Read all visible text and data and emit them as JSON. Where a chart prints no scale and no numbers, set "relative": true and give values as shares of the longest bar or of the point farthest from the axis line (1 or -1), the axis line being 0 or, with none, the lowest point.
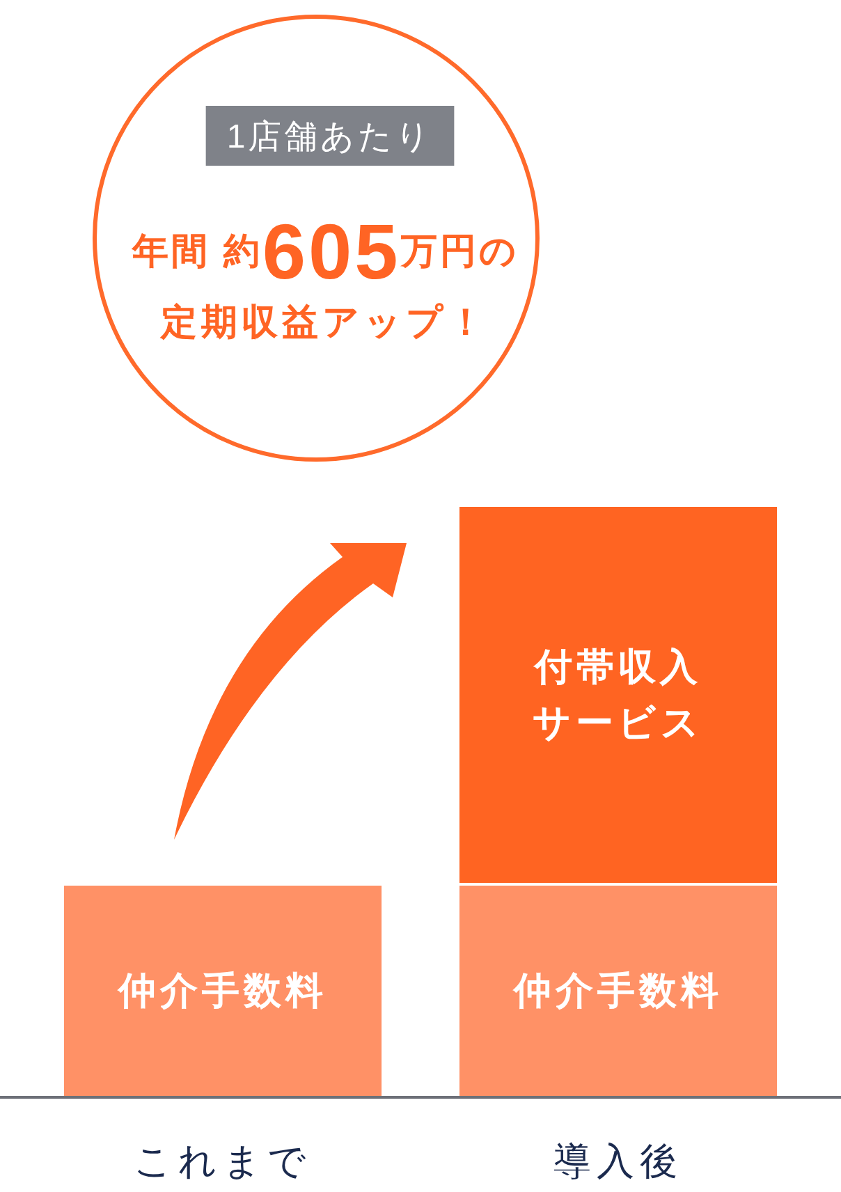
{
  "chart_data": {
    "type": "bar",
    "stacked": true,
    "relative": true,
    "categories": [
      "これまで",
      "導入後"
    ],
    "series": [
      {
        "name": "仲介手数料",
        "color": "#ff9166",
        "values": [
          0.36,
          0.36
        ]
      },
      {
        "name": "付帯収入サービス",
        "color": "#ff6422",
        "values": [
          null,
          0.64
        ]
      }
    ],
    "annotations": [
      "1店舗あたり",
      "年間 約**605**万円の",
      "定期収益アップ！"
    ]
  }
}
